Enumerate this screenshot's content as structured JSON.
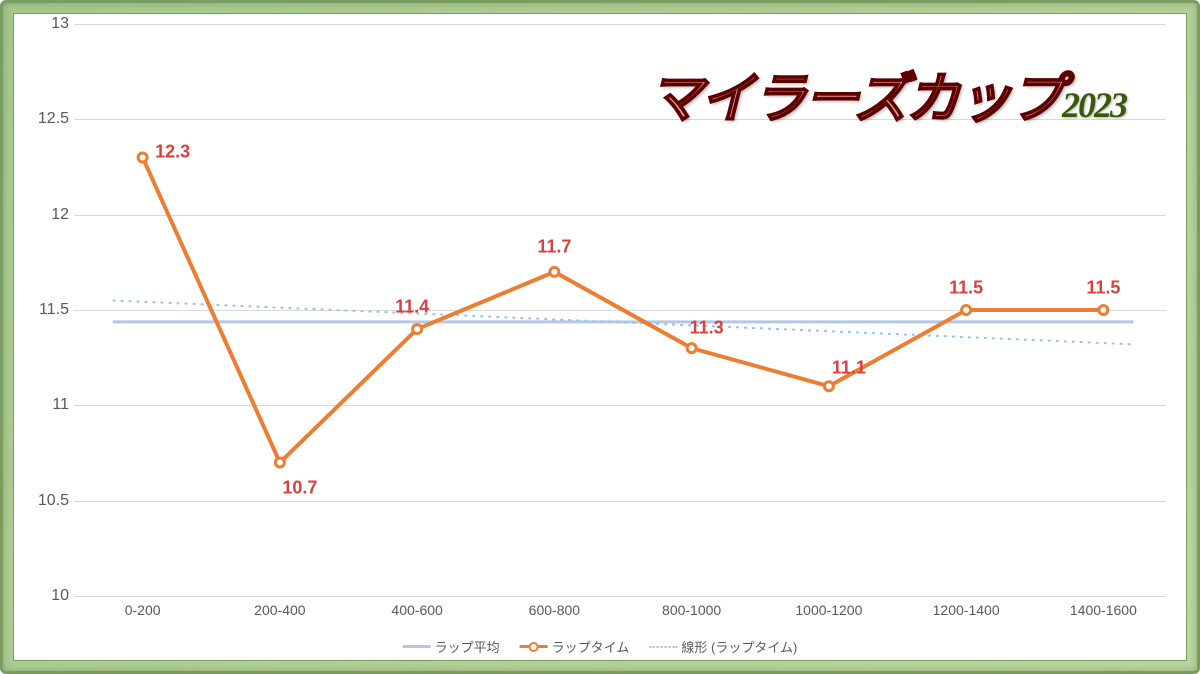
{
  "chart": {
    "type": "line",
    "title_main": "マイラーズカップ",
    "title_year": "2023",
    "title_fontsize": 54,
    "title_year_fontsize": 36,
    "title_color_fill": "#e89b9b",
    "title_color_stroke": "#5c0000",
    "title_year_color": "#3a5a0a",
    "background_color": "#ffffff",
    "frame_bg_color": "#a4c88a",
    "frame_border_color": "#7a9c5e",
    "grid_color": "#d9d9d9",
    "axis_label_color": "#595959",
    "axis_label_fontsize": 16,
    "x_axis_label_fontsize": 14,
    "ylim": [
      10,
      13
    ],
    "ytick_step": 0.5,
    "yticks": [
      10,
      10.5,
      11,
      11.5,
      12,
      12.5,
      13
    ],
    "categories": [
      "0-200",
      "200-400",
      "400-600",
      "600-800",
      "800-1000",
      "1000-1200",
      "1200-1400",
      "1400-1600"
    ],
    "series": {
      "lap_time": {
        "label": "ラップタイム",
        "values": [
          12.3,
          10.7,
          11.4,
          11.7,
          11.3,
          11.1,
          11.5,
          11.5
        ],
        "color": "#ed7d31",
        "line_width": 4,
        "marker": "circle",
        "marker_size": 9,
        "marker_fill": "#ffffff",
        "data_label_color": "#d94040",
        "data_label_fontsize": 18,
        "data_label_offsets": [
          {
            "dx": 30,
            "dy": -5
          },
          {
            "dx": 20,
            "dy": 25
          },
          {
            "dx": -5,
            "dy": -22
          },
          {
            "dx": 0,
            "dy": -25
          },
          {
            "dx": 15,
            "dy": -20
          },
          {
            "dx": 20,
            "dy": -18
          },
          {
            "dx": 0,
            "dy": -22
          },
          {
            "dx": 0,
            "dy": -22
          }
        ]
      },
      "lap_avg": {
        "label": "ラップ平均",
        "value": 11.4375,
        "color": "#b4c7e7",
        "line_width": 3
      },
      "trend": {
        "label": "線形 (ラップタイム)",
        "start_value": 11.55,
        "end_value": 11.32,
        "color": "#9dc3e6",
        "line_width": 2,
        "dash": "dotted"
      }
    },
    "legend": {
      "items": [
        "ラップ平均",
        "ラップタイム",
        "線形 (ラップタイム)"
      ],
      "fontsize": 13,
      "color": "#595959"
    }
  }
}
